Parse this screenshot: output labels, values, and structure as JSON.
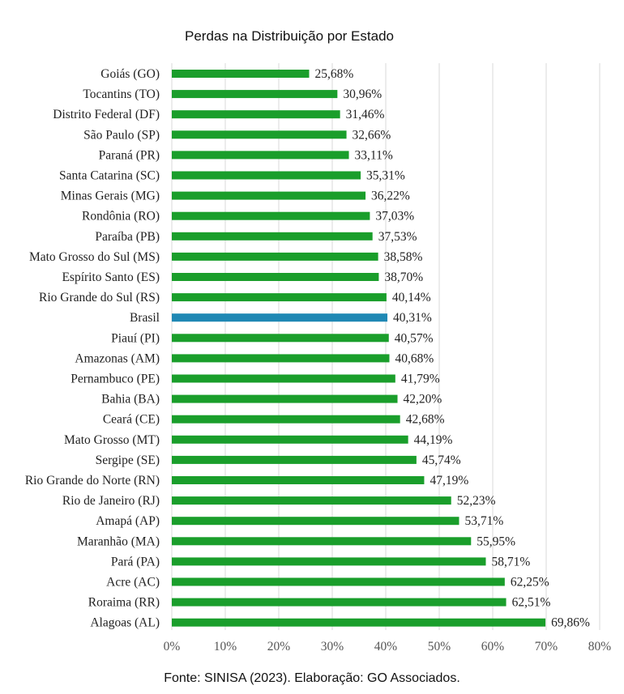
{
  "chart_data": {
    "type": "bar",
    "orientation": "horizontal",
    "title": "Perdas na Distribuição por Estado",
    "source": "Fonte: SINISA (2023). Elaboração: GO Associados.",
    "xlim": [
      0,
      80
    ],
    "grid": true,
    "ticks": [
      "0%",
      "10%",
      "20%",
      "30%",
      "40%",
      "50%",
      "60%",
      "70%",
      "80%"
    ],
    "colors": {
      "default": "#1a9e2b",
      "highlight": "#1f88b4"
    },
    "categories": [
      "Goiás (GO)",
      "Tocantins (TO)",
      "Distrito Federal (DF)",
      "São Paulo (SP)",
      "Paraná (PR)",
      "Santa Catarina (SC)",
      "Minas Gerais (MG)",
      "Rondônia (RO)",
      "Paraíba (PB)",
      "Mato Grosso do Sul (MS)",
      "Espírito Santo (ES)",
      "Rio Grande do Sul (RS)",
      "Brasil",
      "Piauí (PI)",
      "Amazonas (AM)",
      "Pernambuco (PE)",
      "Bahia (BA)",
      "Ceará (CE)",
      "Mato Grosso (MT)",
      "Sergipe (SE)",
      "Rio Grande do Norte (RN)",
      "Rio de Janeiro (RJ)",
      "Amapá (AP)",
      "Maranhão (MA)",
      "Pará (PA)",
      "Acre (AC)",
      "Roraima (RR)",
      "Alagoas (AL)"
    ],
    "values": [
      25.68,
      30.96,
      31.46,
      32.66,
      33.11,
      35.31,
      36.22,
      37.03,
      37.53,
      38.58,
      38.7,
      40.14,
      40.31,
      40.57,
      40.68,
      41.79,
      42.2,
      42.68,
      44.19,
      45.74,
      47.19,
      52.23,
      53.71,
      55.95,
      58.71,
      62.25,
      62.51,
      69.86
    ],
    "value_labels": [
      "25,68%",
      "30,96%",
      "31,46%",
      "32,66%",
      "33,11%",
      "35,31%",
      "36,22%",
      "37,03%",
      "37,53%",
      "38,58%",
      "38,70%",
      "40,14%",
      "40,31%",
      "40,57%",
      "40,68%",
      "41,79%",
      "42,20%",
      "42,68%",
      "44,19%",
      "45,74%",
      "47,19%",
      "52,23%",
      "53,71%",
      "55,95%",
      "58,71%",
      "62,25%",
      "62,51%",
      "69,86%"
    ],
    "highlight_category": "Brasil"
  }
}
